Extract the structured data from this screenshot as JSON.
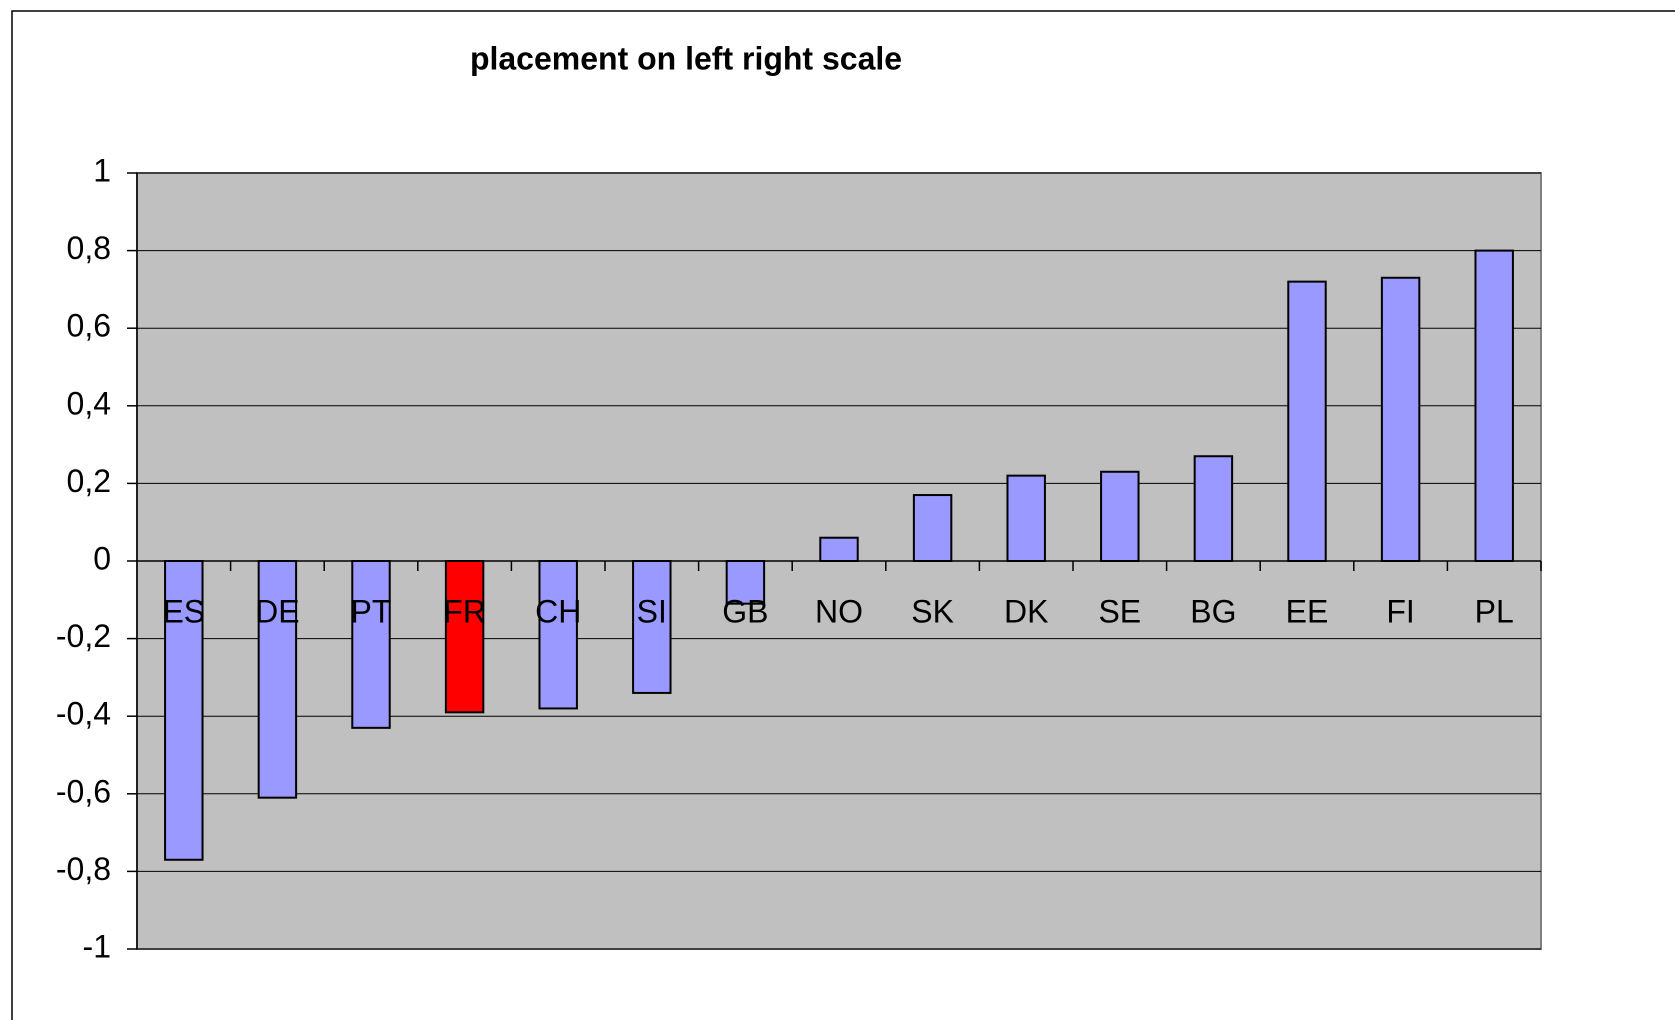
{
  "chart_data": {
    "type": "bar",
    "title": "placement on left right scale",
    "categories": [
      "ES",
      "DE",
      "PT",
      "FR",
      "CH",
      "SI",
      "GB",
      "NO",
      "SK",
      "DK",
      "SE",
      "BG",
      "EE",
      "FI",
      "PL"
    ],
    "values": [
      -0.77,
      -0.61,
      -0.43,
      -0.39,
      -0.38,
      -0.34,
      -0.11,
      0.06,
      0.17,
      0.22,
      0.23,
      0.27,
      0.72,
      0.73,
      0.8
    ],
    "colors": [
      "#9999ff",
      "#9999ff",
      "#9999ff",
      "#ff0000",
      "#9999ff",
      "#9999ff",
      "#9999ff",
      "#9999ff",
      "#9999ff",
      "#9999ff",
      "#9999ff",
      "#9999ff",
      "#9999ff",
      "#9999ff",
      "#9999ff"
    ],
    "ylim": [
      -1,
      1
    ],
    "yticks": [
      -1,
      {
        "value": -0.8,
        "label": "-0,8"
      },
      {
        "value": -0.6,
        "label": "-0,6"
      },
      {
        "value": -0.4,
        "label": "-0,4"
      },
      {
        "value": -0.2,
        "label": "-0,2"
      },
      0,
      {
        "value": 0.2,
        "label": "0,2"
      },
      {
        "value": 0.4,
        "label": "0,4"
      },
      {
        "value": 0.6,
        "label": "0,6"
      },
      {
        "value": 0.8,
        "label": "0,8"
      },
      1
    ],
    "grid": true
  }
}
